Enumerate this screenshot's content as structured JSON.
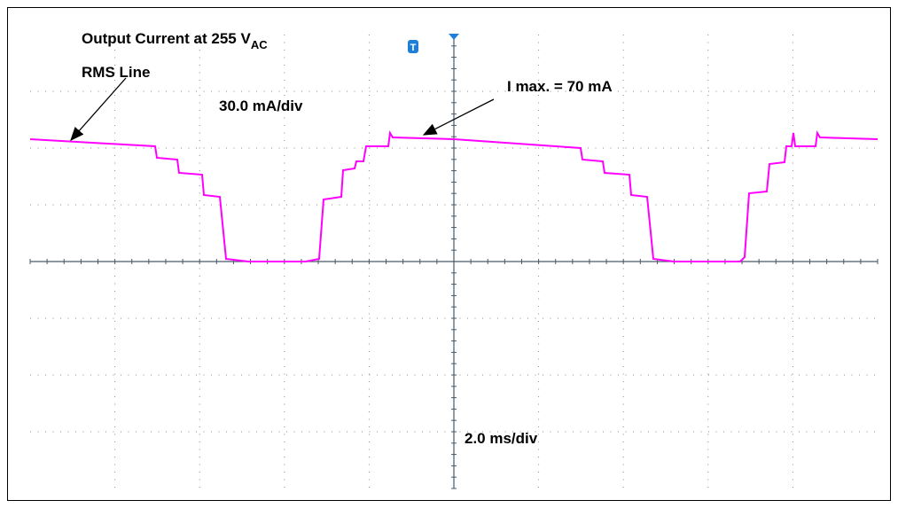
{
  "annotations": {
    "title": "Output Current at 255 V",
    "title_subscript": "AC",
    "rms_line": "RMS Line",
    "vertical_scale": "30.0 mA/div",
    "i_max": "I max. = 70 mA",
    "horizontal_scale": "2.0 ms/div",
    "trigger_marker": "T"
  }
}
